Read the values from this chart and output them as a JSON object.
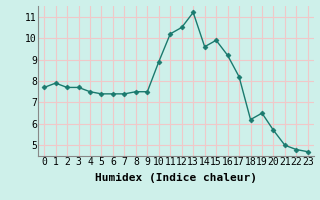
{
  "x": [
    0,
    1,
    2,
    3,
    4,
    5,
    6,
    7,
    8,
    9,
    10,
    11,
    12,
    13,
    14,
    15,
    16,
    17,
    18,
    19,
    20,
    21,
    22,
    23
  ],
  "y": [
    7.7,
    7.9,
    7.7,
    7.7,
    7.5,
    7.4,
    7.4,
    7.4,
    7.5,
    7.5,
    8.9,
    10.2,
    10.5,
    11.2,
    9.6,
    9.9,
    9.2,
    8.2,
    6.2,
    6.5,
    5.7,
    5.0,
    4.8,
    4.7
  ],
  "xlabel": "Humidex (Indice chaleur)",
  "xlim": [
    -0.5,
    23.5
  ],
  "ylim": [
    4.5,
    11.5
  ],
  "yticks": [
    5,
    6,
    7,
    8,
    9,
    10,
    11
  ],
  "xticks": [
    0,
    1,
    2,
    3,
    4,
    5,
    6,
    7,
    8,
    9,
    10,
    11,
    12,
    13,
    14,
    15,
    16,
    17,
    18,
    19,
    20,
    21,
    22,
    23
  ],
  "line_color": "#1a7a6e",
  "marker": "D",
  "marker_size": 2.5,
  "bg_color": "#cef0ea",
  "grid_color": "#f0c8c8",
  "xlabel_fontsize": 8,
  "tick_fontsize": 7,
  "linewidth": 1.0
}
